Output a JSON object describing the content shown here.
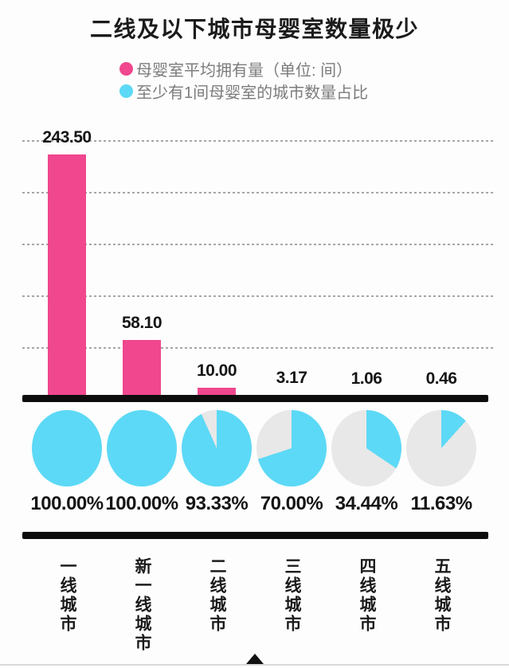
{
  "title": "二线及以下城市母婴室数量极少",
  "legend": {
    "position": "top",
    "items": [
      {
        "label": "母婴室平均拥有量（单位: 间）",
        "color": "#F0478E"
      },
      {
        "label": "至少有1间母婴室的城市数量占比",
        "color": "#5CD9F6"
      }
    ]
  },
  "chart_data": {
    "type": "bar",
    "title": "二线及以下城市母婴室数量极少",
    "categories": [
      "一线城市",
      "新一线城市",
      "二线城市",
      "三线城市",
      "四线城市",
      "五线城市"
    ],
    "series": [
      {
        "name": "母婴室平均拥有量（单位: 间）",
        "chart": "bar",
        "color": "#F0478E",
        "values": [
          243.5,
          58.1,
          10.0,
          3.17,
          1.06,
          0.46
        ],
        "value_labels": [
          "243.50",
          "58.10",
          "10.00",
          "3.17",
          "1.06",
          "0.46"
        ]
      },
      {
        "name": "至少有1间母婴室的城市数量占比",
        "chart": "pie-row",
        "color": "#5CD9F6",
        "remainder_color": "#E8E8E8",
        "values": [
          100.0,
          100.0,
          93.33,
          70.0,
          34.44,
          11.63
        ],
        "value_labels": [
          "100.00%",
          "100.00%",
          "93.33%",
          "70.00%",
          "34.44%",
          "11.63%"
        ]
      }
    ],
    "ylim": [
      0,
      250
    ],
    "grid": {
      "count": 5,
      "style": "dotted",
      "orientation": "horizontal"
    },
    "legend_position": "top",
    "pie_fill_direction": "clockwise-from-top"
  }
}
